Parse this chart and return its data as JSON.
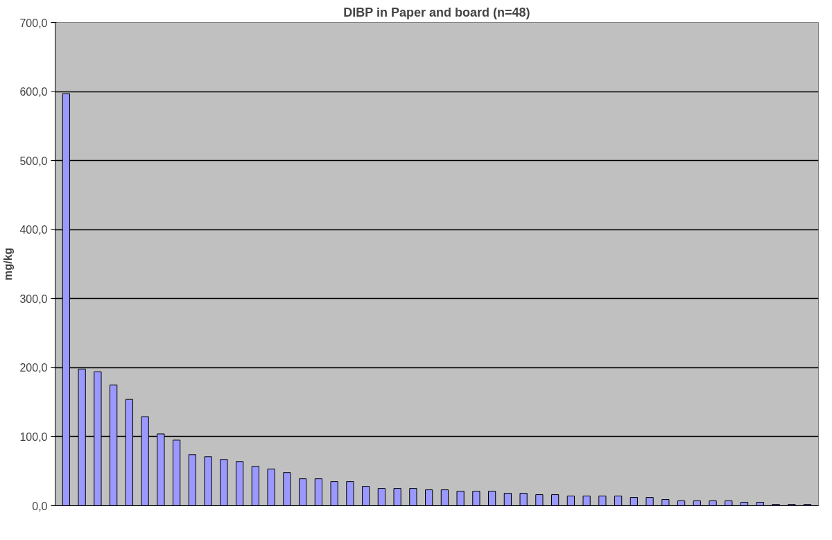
{
  "chart_data": {
    "type": "bar",
    "title": "DIBP in Paper and board (n=48)",
    "ylabel": "mg/kg",
    "categories": [
      null,
      null,
      null,
      null,
      null,
      null,
      null,
      null,
      null,
      null,
      null,
      null,
      null,
      null,
      null,
      null,
      null,
      null,
      null,
      null,
      null,
      null,
      null,
      null,
      null,
      null,
      null,
      null,
      null,
      null,
      null,
      null,
      null,
      null,
      null,
      null,
      null,
      null,
      null,
      null,
      null,
      null,
      null,
      null,
      null,
      null,
      null,
      null
    ],
    "values": [
      597,
      198,
      194,
      175,
      154,
      129,
      104,
      95,
      74,
      71,
      67,
      64,
      57,
      53,
      48,
      39,
      39,
      35,
      35,
      28,
      25,
      25,
      25,
      23,
      23,
      21,
      21,
      21,
      18,
      18,
      16,
      16,
      14,
      14,
      14,
      14,
      12,
      12,
      9,
      7,
      7,
      7,
      7,
      5,
      5,
      2,
      2,
      2
    ],
    "color": "#9999ff",
    "ylim": [
      0,
      700
    ],
    "yticks": [
      {
        "value": 0,
        "label": "0,0"
      },
      {
        "value": 100,
        "label": "100,0"
      },
      {
        "value": 200,
        "label": "200,0"
      },
      {
        "value": 300,
        "label": "300,0"
      },
      {
        "value": 400,
        "label": "400,0"
      },
      {
        "value": 500,
        "label": "500,0"
      },
      {
        "value": 600,
        "label": "600,0"
      },
      {
        "value": 700,
        "label": "700,0"
      }
    ],
    "grid": "y"
  }
}
